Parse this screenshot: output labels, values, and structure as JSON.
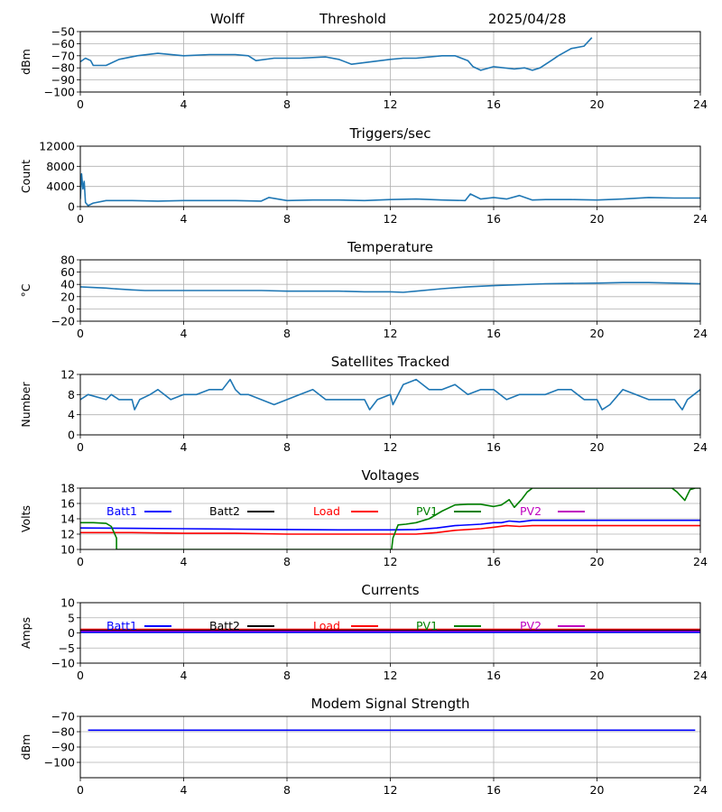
{
  "header": {
    "station": "Wolff",
    "title": "Threshold",
    "date": "2025/04/28"
  },
  "chart_data": [
    {
      "type": "line",
      "title": "",
      "ylabel": "dBm",
      "ylim": [
        -100,
        -50
      ],
      "yticks": [
        -100,
        -90,
        -80,
        -70,
        -60,
        -50
      ],
      "xlim": [
        0,
        24
      ],
      "xticks": [
        0,
        4,
        8,
        12,
        16,
        20,
        24
      ],
      "grid": true,
      "series": [
        {
          "color": "#1f77b4",
          "x": [
            0,
            0.2,
            0.4,
            0.5,
            1.0,
            1.5,
            2.2,
            3.0,
            4.0,
            5.0,
            6.0,
            6.5,
            6.8,
            7.5,
            8.5,
            9.5,
            10.0,
            10.5,
            12.0,
            12.5,
            13.0,
            14.0,
            14.5,
            15.0,
            15.2,
            15.5,
            16.0,
            16.8,
            17.2,
            17.5,
            17.8,
            18.3,
            18.5,
            19.0,
            19.5,
            19.8
          ],
          "y": [
            -75,
            -72,
            -74,
            -78,
            -78,
            -73,
            -70,
            -68,
            -70,
            -69,
            -69,
            -70,
            -74,
            -72,
            -72,
            -71,
            -73,
            -77,
            -73,
            -72,
            -72,
            -70,
            -70,
            -74,
            -79,
            -82,
            -79,
            -81,
            -80,
            -82,
            -80,
            -73,
            -70,
            -64,
            -62,
            -55
          ]
        }
      ]
    },
    {
      "type": "line",
      "title": "Triggers/sec",
      "ylabel": "Count",
      "ylim": [
        0,
        12000
      ],
      "yticks": [
        0,
        4000,
        8000,
        12000
      ],
      "xlim": [
        0,
        24
      ],
      "xticks": [
        0,
        4,
        8,
        12,
        16,
        20,
        24
      ],
      "grid": true,
      "series": [
        {
          "color": "#1f77b4",
          "x": [
            0,
            0.05,
            0.1,
            0.15,
            0.2,
            0.25,
            0.3,
            0.5,
            1,
            2,
            3,
            4,
            5,
            6,
            7,
            7.3,
            8,
            9,
            10,
            11,
            12,
            13,
            14,
            14.9,
            15.1,
            15.5,
            16,
            16.5,
            17,
            17.5,
            18,
            19,
            20,
            21,
            22,
            23,
            24
          ],
          "y": [
            1500,
            6500,
            3500,
            5000,
            800,
            500,
            200,
            700,
            1200,
            1200,
            1100,
            1200,
            1200,
            1200,
            1100,
            1800,
            1200,
            1300,
            1300,
            1200,
            1400,
            1500,
            1300,
            1200,
            2500,
            1500,
            1800,
            1500,
            2200,
            1300,
            1400,
            1400,
            1300,
            1500,
            1800,
            1700,
            1700
          ]
        }
      ]
    },
    {
      "type": "line",
      "title": "Temperature",
      "ylabel": "°C",
      "ylim": [
        -20,
        80
      ],
      "yticks": [
        -20,
        0,
        20,
        40,
        60,
        80
      ],
      "xlim": [
        0,
        24
      ],
      "xticks": [
        0,
        4,
        8,
        12,
        16,
        20,
        24
      ],
      "grid": true,
      "series": [
        {
          "color": "#1f77b4",
          "x": [
            0,
            1,
            1.3,
            2,
            2.5,
            4,
            7,
            8,
            10,
            11,
            12,
            12.5,
            13,
            14,
            15,
            16,
            18,
            20,
            21,
            22,
            23,
            24
          ],
          "y": [
            36,
            34,
            33,
            31,
            30,
            30,
            30,
            29,
            29,
            28,
            28,
            27,
            29,
            33,
            36,
            38,
            41,
            42,
            43,
            43,
            42,
            41
          ]
        }
      ]
    },
    {
      "type": "line",
      "title": "Satellites Tracked",
      "ylabel": "Number",
      "ylim": [
        0,
        12
      ],
      "yticks": [
        0,
        4,
        8,
        12
      ],
      "xlim": [
        0,
        24
      ],
      "xticks": [
        0,
        4,
        8,
        12,
        16,
        20,
        24
      ],
      "grid": true,
      "series": [
        {
          "color": "#1f77b4",
          "x": [
            0,
            0.3,
            1,
            1.2,
            1.5,
            2,
            2.1,
            2.3,
            2.7,
            3,
            3.5,
            4,
            4.5,
            5,
            5.5,
            5.8,
            6,
            6.2,
            6.5,
            7,
            7.5,
            8,
            8.5,
            9,
            9.5,
            10,
            10.5,
            11,
            11.2,
            11.5,
            12,
            12.1,
            12.5,
            13,
            13.5,
            14,
            14.5,
            15,
            15.5,
            16,
            16.5,
            17,
            17.5,
            18,
            18.5,
            19,
            19.5,
            20,
            20.2,
            20.5,
            21,
            21.5,
            22,
            22.5,
            23,
            23.3,
            23.5,
            24
          ],
          "y": [
            7,
            8,
            7,
            8,
            7,
            7,
            5,
            7,
            8,
            9,
            7,
            8,
            8,
            9,
            9,
            11,
            9,
            8,
            8,
            7,
            6,
            7,
            8,
            9,
            7,
            7,
            7,
            7,
            5,
            7,
            8,
            6,
            10,
            11,
            9,
            9,
            10,
            8,
            9,
            9,
            7,
            8,
            8,
            8,
            9,
            9,
            7,
            7,
            5,
            6,
            9,
            8,
            7,
            7,
            7,
            5,
            7,
            9
          ]
        }
      ]
    },
    {
      "type": "line",
      "title": "Voltages",
      "ylabel": "Volts",
      "ylim": [
        10,
        18
      ],
      "yticks": [
        10,
        12,
        14,
        16,
        18
      ],
      "xlim": [
        0,
        24
      ],
      "xticks": [
        0,
        4,
        8,
        12,
        16,
        20,
        24
      ],
      "grid": true,
      "legend": [
        "Batt1",
        "Batt2",
        "Load",
        "PV1",
        "PV2"
      ],
      "legend_colors": [
        "#0000ff",
        "#000000",
        "#ff0000",
        "#008000",
        "#bf00bf"
      ],
      "series": [
        {
          "name": "Batt1",
          "color": "#0000ff",
          "x": [
            0,
            2,
            4,
            6,
            8,
            10,
            12,
            13,
            13.8,
            14.5,
            15.5,
            16,
            16.3,
            16.6,
            17,
            17.5,
            18,
            20,
            22,
            24
          ],
          "y": [
            12.8,
            12.75,
            12.7,
            12.65,
            12.6,
            12.55,
            12.55,
            12.6,
            12.8,
            13.1,
            13.3,
            13.5,
            13.5,
            13.7,
            13.6,
            13.8,
            13.8,
            13.8,
            13.8,
            13.8
          ]
        },
        {
          "name": "Load",
          "color": "#ff0000",
          "x": [
            0,
            2,
            4,
            6,
            8,
            10,
            12,
            13,
            13.8,
            14.5,
            15.5,
            16,
            16.5,
            17,
            17.5,
            18,
            20,
            22,
            24
          ],
          "y": [
            12.2,
            12.2,
            12.1,
            12.1,
            12.0,
            12.0,
            12.0,
            12.0,
            12.2,
            12.5,
            12.7,
            12.9,
            13.1,
            13.0,
            13.1,
            13.1,
            13.1,
            13.1,
            13.1
          ]
        },
        {
          "name": "PV1",
          "color": "#008000",
          "x": [
            0,
            0.5,
            1.0,
            1.2,
            1.4,
            1.4,
            12.05,
            12.1,
            12.3,
            12.6,
            13,
            13.5,
            14,
            14.5,
            15,
            15.5,
            16,
            16.3,
            16.6,
            16.8,
            17.1,
            17.3,
            17.5,
            17.6,
            22.9,
            23.1,
            23.4,
            23.6,
            23.8,
            24
          ],
          "y": [
            13.5,
            13.5,
            13.4,
            13.0,
            11.5,
            10,
            10,
            11.5,
            13.2,
            13.3,
            13.5,
            14.0,
            15.0,
            15.8,
            15.9,
            15.9,
            15.6,
            15.8,
            16.5,
            15.5,
            16.6,
            17.5,
            18.0,
            18.0,
            18.0,
            17.5,
            16.4,
            17.8,
            18.0,
            18.0
          ]
        }
      ]
    },
    {
      "type": "line",
      "title": "Currents",
      "ylabel": "Amps",
      "ylim": [
        -10,
        10
      ],
      "yticks": [
        -10,
        -5,
        0,
        5,
        10
      ],
      "xlim": [
        0,
        24
      ],
      "xticks": [
        0,
        4,
        8,
        12,
        16,
        20,
        24
      ],
      "grid": true,
      "legend": [
        "Batt1",
        "Batt2",
        "Load",
        "PV1",
        "PV2"
      ],
      "legend_colors": [
        "#0000ff",
        "#000000",
        "#ff0000",
        "#008000",
        "#bf00bf"
      ],
      "series": [
        {
          "name": "Load",
          "color": "#ff0000",
          "x": [
            0,
            24
          ],
          "y": [
            1.2,
            1.2
          ]
        },
        {
          "name": "Batt2",
          "color": "#000000",
          "x": [
            0,
            24
          ],
          "y": [
            0.8,
            0.8
          ]
        },
        {
          "name": "PV2",
          "color": "#bf00bf",
          "x": [
            0,
            24
          ],
          "y": [
            0.5,
            0.5
          ]
        },
        {
          "name": "Batt1",
          "color": "#0000ff",
          "x": [
            0,
            24
          ],
          "y": [
            0.2,
            0.2
          ]
        }
      ]
    },
    {
      "type": "line",
      "title": "Modem Signal Strength",
      "ylabel": "dBm",
      "ylim": [
        -110,
        -70
      ],
      "yticks": [
        -100,
        -90,
        -80,
        -70
      ],
      "xlim": [
        0,
        24
      ],
      "xticks": [
        0,
        4,
        8,
        12,
        16,
        20,
        24
      ],
      "grid": true,
      "series": [
        {
          "color": "#0000ff",
          "x": [
            0.3,
            23.8
          ],
          "y": [
            -79,
            -79
          ]
        }
      ]
    }
  ]
}
